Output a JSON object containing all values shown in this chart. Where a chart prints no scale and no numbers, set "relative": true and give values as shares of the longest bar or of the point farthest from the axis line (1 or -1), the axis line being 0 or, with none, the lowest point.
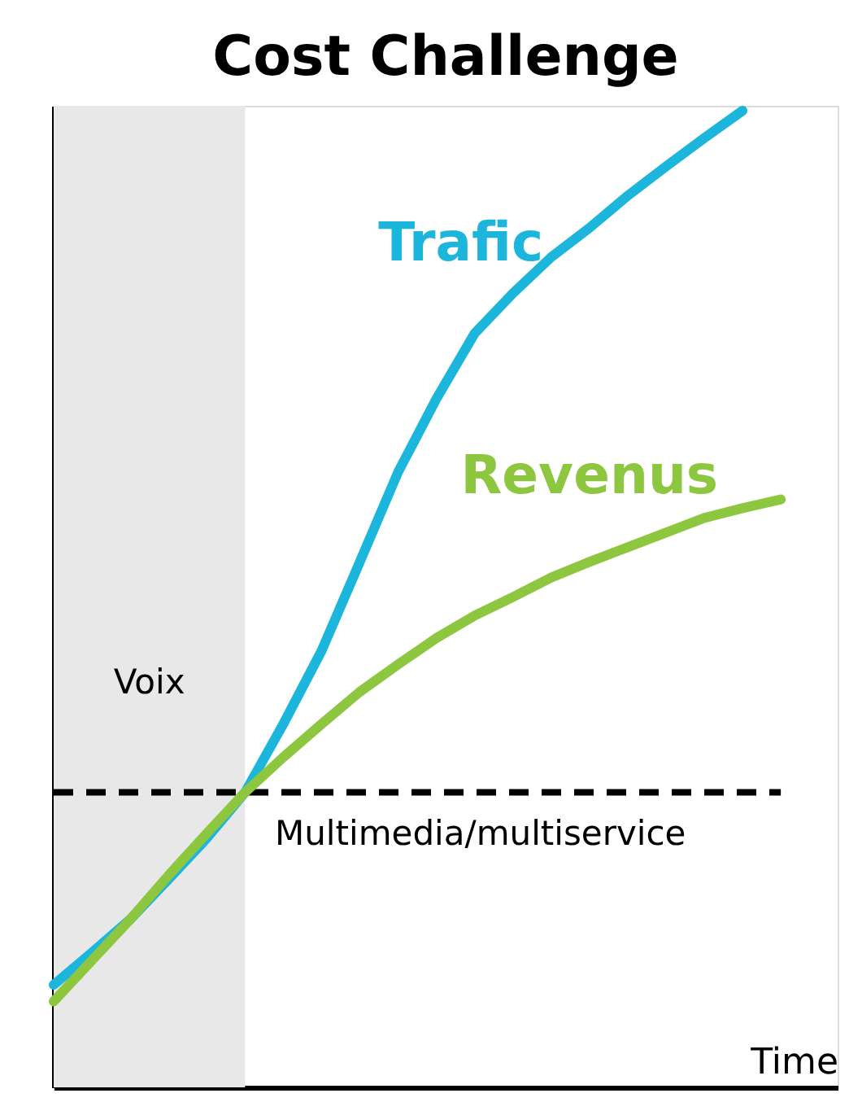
{
  "chart_data": {
    "type": "line",
    "title": "Cost Challenge",
    "xlabel": "Time",
    "relative": true,
    "grid": false,
    "tick_labels": false,
    "categories": [
      null,
      null,
      null,
      null,
      null,
      null,
      null,
      null,
      null,
      null,
      null,
      null,
      null,
      null,
      null,
      null,
      null,
      null,
      null,
      null
    ],
    "series": [
      {
        "name": "Trafic",
        "color": "#1cb5dc",
        "values": [
          0.105,
          0.138,
          0.172,
          0.213,
          0.255,
          0.302,
          0.372,
          0.447,
          0.538,
          0.63,
          0.705,
          0.772,
          0.813,
          0.85,
          0.88,
          0.913,
          0.943,
          0.972,
          1.0,
          null
        ]
      },
      {
        "name": "Revenus",
        "color": "#8dc63f",
        "values": [
          0.088,
          0.13,
          0.172,
          0.217,
          0.26,
          0.302,
          0.338,
          0.372,
          0.405,
          0.433,
          0.46,
          0.483,
          0.502,
          0.522,
          0.538,
          0.553,
          0.568,
          0.583,
          0.593,
          0.602
        ]
      }
    ],
    "annotations": [
      "Voix"
    ],
    "ref_lines": [
      {
        "axis": "y",
        "value": 0.302,
        "label": "Multimedia/multiservice",
        "line_style": "dashed",
        "color": "#000000"
      }
    ]
  }
}
